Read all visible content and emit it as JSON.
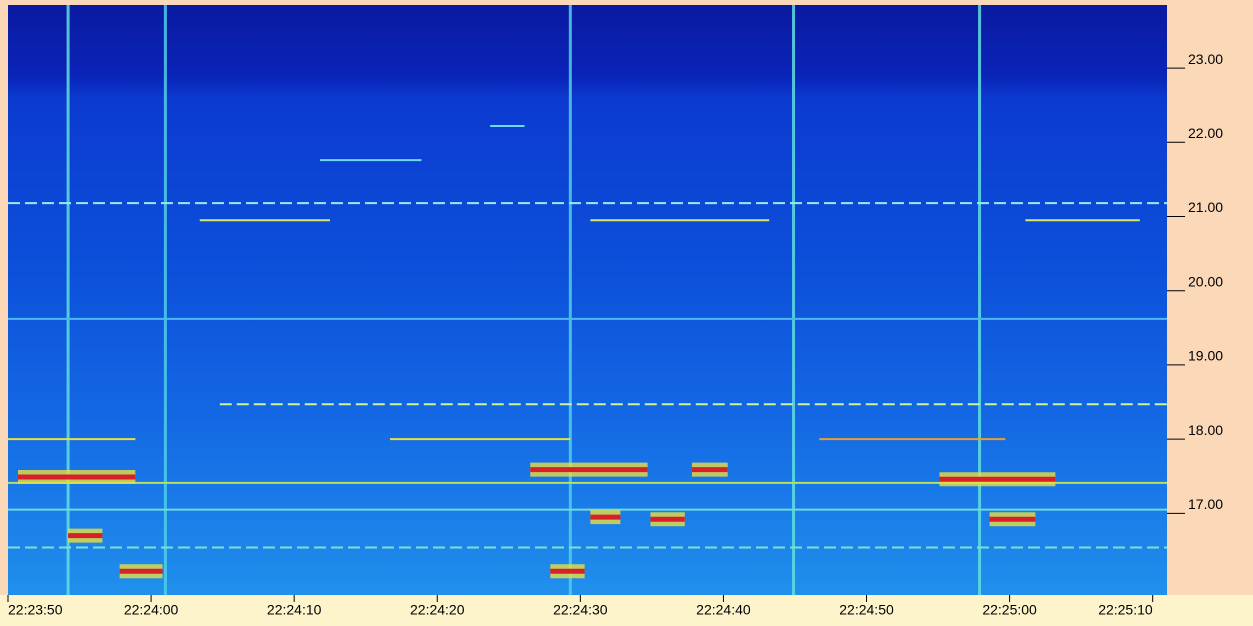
{
  "chart_data": {
    "type": "spectrogram",
    "xlim": [
      80630,
      80711
    ],
    "xticks": [
      {
        "value": 80630,
        "label": "22:23:50"
      },
      {
        "value": 80640,
        "label": "22:24:00"
      },
      {
        "value": 80650,
        "label": "22:24:10"
      },
      {
        "value": 80660,
        "label": "22:24:20"
      },
      {
        "value": 80670,
        "label": "22:24:30"
      },
      {
        "value": 80680,
        "label": "22:24:40"
      },
      {
        "value": 80690,
        "label": "22:24:50"
      },
      {
        "value": 80700,
        "label": "22:25:00"
      },
      {
        "value": 80710,
        "label": "22:25:10"
      }
    ],
    "ylim": [
      15.9,
      23.85
    ],
    "yticks": [
      {
        "value": 17,
        "label": "17.00"
      },
      {
        "value": 18,
        "label": "18.00"
      },
      {
        "value": 19,
        "label": "19.00"
      },
      {
        "value": 20,
        "label": "20.00"
      },
      {
        "value": 21,
        "label": "21.00"
      },
      {
        "value": 22,
        "label": "22.00"
      },
      {
        "value": 23,
        "label": "23.00"
      }
    ],
    "signals": [
      {
        "t0": 80630,
        "t1": 80711,
        "freq": 19.62,
        "color": "#4fb8f0",
        "dashed": false
      },
      {
        "t0": 80630,
        "t1": 80711,
        "freq": 17.41,
        "color": "#b8e060",
        "dashed": false
      },
      {
        "t0": 80630,
        "t1": 80711,
        "freq": 17.05,
        "color": "#6fd8e0",
        "dashed": false
      },
      {
        "t0": 80630,
        "t1": 80711,
        "freq": 16.54,
        "color": "#7fe0d0",
        "dashed": true
      },
      {
        "t0": 80630,
        "t1": 80711,
        "freq": 21.18,
        "color": "#a0e8e8",
        "dashed": true
      },
      {
        "t0": 80644.8,
        "t1": 80711,
        "freq": 18.47,
        "color": "#d0f0a0",
        "dashed": true
      },
      {
        "t0": 80643.4,
        "t1": 80652.5,
        "freq": 20.95,
        "color": "#d8e870",
        "dashed": false
      },
      {
        "t0": 80670.7,
        "t1": 80683.2,
        "freq": 20.95,
        "color": "#d8e870",
        "dashed": false
      },
      {
        "t0": 80701.1,
        "t1": 80709.1,
        "freq": 20.95,
        "color": "#d8e870",
        "dashed": false
      },
      {
        "t0": 80651.8,
        "t1": 80658.9,
        "freq": 21.76,
        "color": "#70d8f0",
        "dashed": false
      },
      {
        "t0": 80663.7,
        "t1": 80666.1,
        "freq": 22.22,
        "color": "#70d8f0",
        "dashed": false
      },
      {
        "t0": 80630,
        "t1": 80638.9,
        "freq": 18.0,
        "color": "#e8e040",
        "dashed": false
      },
      {
        "t0": 80656.7,
        "t1": 80669.3,
        "freq": 18.0,
        "color": "#e8e040",
        "dashed": false
      },
      {
        "t0": 80686.7,
        "t1": 80699.7,
        "freq": 18.0,
        "color": "#e8a030",
        "dashed": false
      },
      {
        "t0": 80630.7,
        "t1": 80638.9,
        "freq": 17.49,
        "color": "#d8202a",
        "dashed": false
      },
      {
        "t0": 80666.5,
        "t1": 80674.7,
        "freq": 17.59,
        "color": "#d8202a",
        "dashed": false
      },
      {
        "t0": 80677.8,
        "t1": 80680.3,
        "freq": 17.59,
        "color": "#d8202a",
        "dashed": false
      },
      {
        "t0": 80695.1,
        "t1": 80703.2,
        "freq": 17.46,
        "color": "#d8202a",
        "dashed": false
      },
      {
        "t0": 80634.2,
        "t1": 80636.6,
        "freq": 16.7,
        "color": "#d8202a",
        "dashed": false
      },
      {
        "t0": 80637.8,
        "t1": 80640.8,
        "freq": 16.22,
        "color": "#d8202a",
        "dashed": false
      },
      {
        "t0": 80667.9,
        "t1": 80670.3,
        "freq": 16.22,
        "color": "#d8202a",
        "dashed": false
      },
      {
        "t0": 80698.6,
        "t1": 80701.8,
        "freq": 16.92,
        "color": "#d8202a",
        "dashed": false
      },
      {
        "t0": 80674.9,
        "t1": 80677.3,
        "freq": 16.92,
        "color": "#d8202a",
        "dashed": false
      },
      {
        "t0": 80670.7,
        "t1": 80672.8,
        "freq": 16.95,
        "color": "#d8202a",
        "dashed": false
      }
    ],
    "bursts": [
      {
        "t": 80634.2,
        "color": "#60e0e0"
      },
      {
        "t": 80641.0,
        "color": "#50d0e8"
      },
      {
        "t": 80669.3,
        "color": "#50d0e8"
      },
      {
        "t": 80684.9,
        "color": "#60e0e0"
      },
      {
        "t": 80697.9,
        "color": "#60e0e0"
      }
    ]
  }
}
